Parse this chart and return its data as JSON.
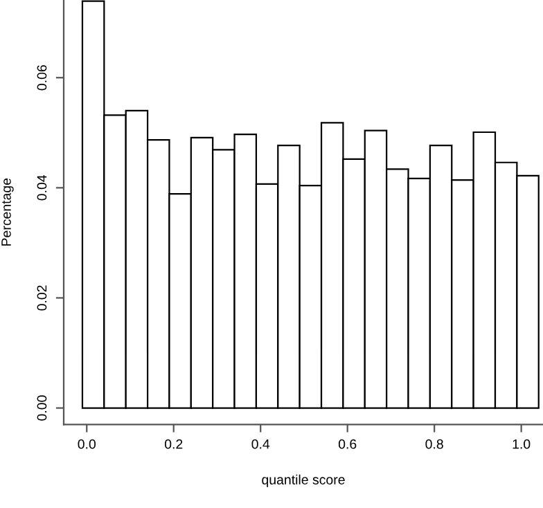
{
  "chart_data": {
    "type": "histogram",
    "xlabel": "quantile score",
    "ylabel": "Percentage",
    "bins": [
      -0.01,
      0.04,
      0.09,
      0.14,
      0.19,
      0.24,
      0.29,
      0.34,
      0.39,
      0.44,
      0.49,
      0.54,
      0.59,
      0.64,
      0.69,
      0.74,
      0.79,
      0.84,
      0.89,
      0.94,
      0.99,
      1.04
    ],
    "values": [
      0.0739,
      0.0532,
      0.054,
      0.0487,
      0.0389,
      0.0491,
      0.0469,
      0.0497,
      0.0407,
      0.0477,
      0.0404,
      0.0518,
      0.0452,
      0.0504,
      0.0434,
      0.0417,
      0.0477,
      0.0414,
      0.0501,
      0.0446,
      0.0422
    ],
    "color": "#ffffff",
    "xlim": [
      -0.053,
      1.05
    ],
    "ylim": [
      -0.003,
      0.0741
    ],
    "xticks": [
      {
        "value": 0,
        "label": "0.0"
      },
      {
        "value": 0.2,
        "label": "0.2"
      },
      {
        "value": 0.4,
        "label": "0.4"
      },
      {
        "value": 0.6,
        "label": "0.6"
      },
      {
        "value": 0.8,
        "label": "0.8"
      },
      {
        "value": 1,
        "label": "1.0"
      }
    ],
    "yticks": [
      {
        "value": 0,
        "label": "0.00"
      },
      {
        "value": 0.02,
        "label": "0.02"
      },
      {
        "value": 0.04,
        "label": "0.04"
      },
      {
        "value": 0.06,
        "label": "0.06"
      }
    ],
    "grid": false
  }
}
